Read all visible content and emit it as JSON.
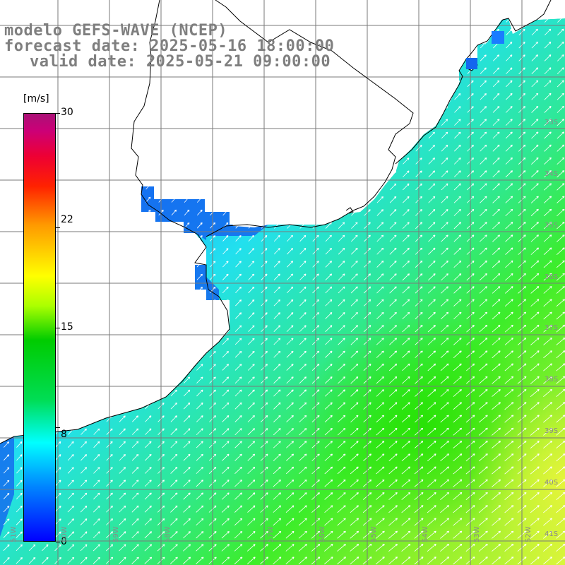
{
  "header": {
    "line1": "modelo GEFS-WAVE (NCEP)",
    "line2": "forecast date: 2025-05-16 18:00:00",
    "line3": "valid date: 2025-05-21 09:00:00"
  },
  "colorbar": {
    "unit": "[m/s]",
    "ticks": [
      "30",
      "22",
      "15",
      "8",
      "0"
    ],
    "tick_values": [
      30,
      22,
      15,
      8,
      0
    ],
    "min": 0,
    "max": 30
  },
  "axes": {
    "lat_labels": [
      "33S",
      "34S",
      "35S",
      "36S",
      "37S",
      "38S",
      "39S",
      "40S",
      "41S"
    ],
    "lon_labels": [
      "60W",
      "59W",
      "58W",
      "57W",
      "56W",
      "55W",
      "54W",
      "53W",
      "52W",
      "51W"
    ]
  },
  "map_data": {
    "field": "wind speed and direction",
    "region": "Rio de la Plata / Uruguay coast",
    "lat_range": [
      -41.3,
      -31.2
    ],
    "lon_range": [
      -61.0,
      -50.1
    ],
    "colors": {
      "land": "#ffffff",
      "grid": "#7a7a7a",
      "coast": "#000000",
      "arrows": "#ffffff"
    }
  }
}
